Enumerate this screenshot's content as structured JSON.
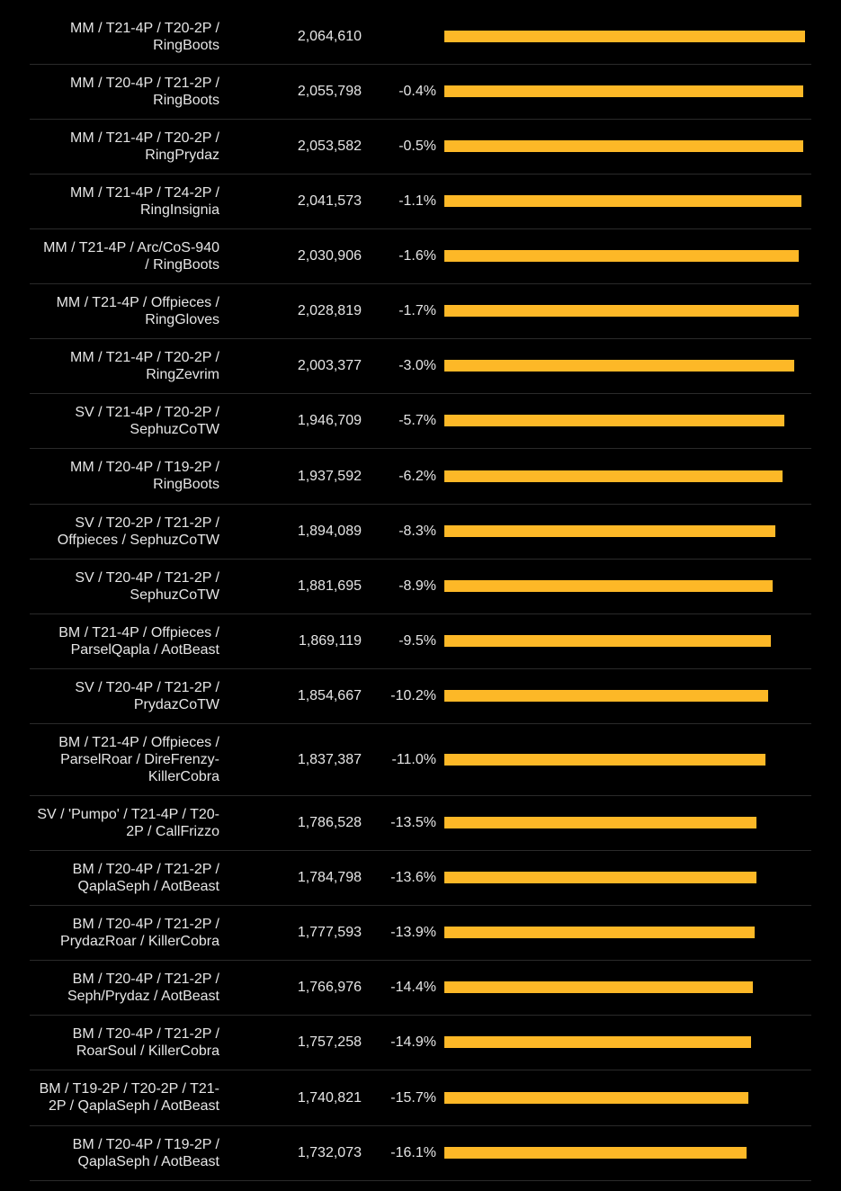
{
  "colors": {
    "background": "#000000",
    "bar": "#fdb827",
    "text": "#e6e6e6",
    "separator": "#2a2a2a"
  },
  "chart_data": {
    "type": "bar",
    "orientation": "horizontal",
    "title": "",
    "xlabel": "",
    "ylabel": "",
    "grid": false,
    "legend": "none",
    "xlim": [
      0,
      2064610
    ],
    "categories": [
      "MM / T21-4P / T20-2P /\nRingBoots",
      "MM / T20-4P / T21-2P /\nRingBoots",
      "MM / T21-4P / T20-2P /\nRingPrydaz",
      "MM / T21-4P / T24-2P /\nRingInsignia",
      "MM / T21-4P / Arc/CoS-940\n/ RingBoots",
      "MM / T21-4P / Offpieces /\nRingGloves",
      "MM / T21-4P / T20-2P /\nRingZevrim",
      "SV / T21-4P / T20-2P /\nSephuzCoTW",
      "MM / T20-4P / T19-2P /\nRingBoots",
      "SV / T20-2P / T21-2P /\nOffpieces / SephuzCoTW",
      "SV / T20-4P / T21-2P /\nSephuzCoTW",
      "BM / T21-4P / Offpieces /\nParselQapla / AotBeast",
      "SV / T20-4P / T21-2P /\nPrydazCoTW",
      "BM / T21-4P / Offpieces /\nParselRoar / DireFrenzy-\nKillerCobra",
      "SV / 'Pumpo' / T21-4P / T20-\n2P / CallFrizzo",
      "BM / T20-4P / T21-2P /\nQaplaSeph / AotBeast",
      "BM / T20-4P / T21-2P /\nPrydazRoar / KillerCobra",
      "BM / T20-4P / T21-2P /\nSeph/Prydaz / AotBeast",
      "BM / T20-4P / T21-2P /\nRoarSoul / KillerCobra",
      "BM / T19-2P / T20-2P / T21-\n2P / QaplaSeph / AotBeast",
      "BM / T20-4P / T19-2P /\nQaplaSeph / AotBeast"
    ],
    "values": [
      2064610,
      2055798,
      2053582,
      2041573,
      2030906,
      2028819,
      2003377,
      1946709,
      1937592,
      1894089,
      1881695,
      1869119,
      1854667,
      1837387,
      1786528,
      1784798,
      1777593,
      1766976,
      1757258,
      1740821,
      1732073
    ],
    "value_labels": [
      "2,064,610",
      "2,055,798",
      "2,053,582",
      "2,041,573",
      "2,030,906",
      "2,028,819",
      "2,003,377",
      "1,946,709",
      "1,937,592",
      "1,894,089",
      "1,881,695",
      "1,869,119",
      "1,854,667",
      "1,837,387",
      "1,786,528",
      "1,784,798",
      "1,777,593",
      "1,766,976",
      "1,757,258",
      "1,740,821",
      "1,732,073"
    ],
    "diff_labels": [
      "",
      "-0.4%",
      "-0.5%",
      "-1.1%",
      "-1.6%",
      "-1.7%",
      "-3.0%",
      "-5.7%",
      "-6.2%",
      "-8.3%",
      "-8.9%",
      "-9.5%",
      "-10.2%",
      "-11.0%",
      "-13.5%",
      "-13.6%",
      "-13.9%",
      "-14.4%",
      "-14.9%",
      "-15.7%",
      "-16.1%"
    ]
  }
}
